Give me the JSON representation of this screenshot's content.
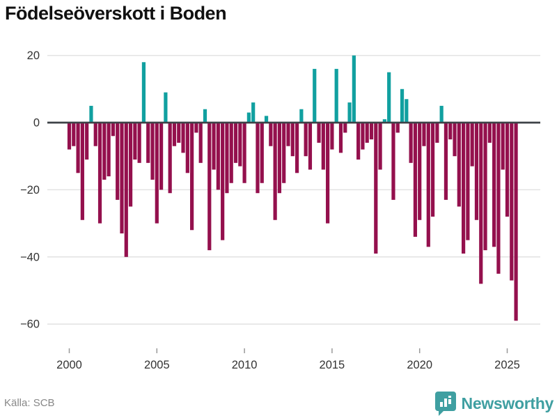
{
  "title": "Födelseöverskott i Boden",
  "source": "Källa: SCB",
  "branding": {
    "name": "Newsworthy"
  },
  "colors": {
    "positive": "#11a0a0",
    "negative": "#94104d",
    "zero_line": "#3d4247",
    "gridline": "#e2e2e2",
    "tick": "#999999",
    "axis_label": "#333333",
    "title": "#111111",
    "source_text": "#878787",
    "brand": "#3f9fa1"
  },
  "chart_data": {
    "type": "bar",
    "title": "Födelseöverskott i Boden",
    "period": "quarterly",
    "start": "2000-Q1",
    "end": "2025-Q3",
    "xlabel": "",
    "ylabel": "",
    "ylim": [
      -63,
      24
    ],
    "grid": true,
    "legend": "none",
    "y_ticks": [
      20,
      0,
      -20,
      -40,
      -60
    ],
    "y_tick_labels": [
      "20",
      "0",
      "−20",
      "−40",
      "−60"
    ],
    "x_tick_years": [
      2000,
      2005,
      2010,
      2015,
      2020,
      2025
    ],
    "x_tick_labels": [
      "2000",
      "2005",
      "2010",
      "2015",
      "2020",
      "2025"
    ],
    "series": [
      {
        "name": "Födelseöverskott",
        "values": [
          -8,
          -7,
          -15,
          -29,
          -11,
          5,
          -7,
          -30,
          -17,
          -16,
          -4,
          -23,
          -33,
          -40,
          -25,
          -11,
          -12,
          18,
          -12,
          -17,
          -30,
          -20,
          9,
          -21,
          -7,
          -6,
          -9,
          -15,
          -32,
          -3,
          -12,
          4,
          -38,
          -14,
          -20,
          -35,
          -21,
          -18,
          -12,
          -13,
          -18,
          3,
          6,
          -21,
          -18,
          2,
          -7,
          -29,
          -21,
          -18,
          -7,
          -10,
          -15,
          4,
          -10,
          -14,
          16,
          -6,
          -14,
          -30,
          -8,
          16,
          -9,
          -3,
          6,
          20,
          -11,
          -8,
          -6,
          -5,
          -39,
          -14,
          1,
          15,
          -23,
          -3,
          10,
          7,
          -12,
          -34,
          -29,
          -7,
          -37,
          -28,
          -6,
          5,
          -23,
          -5,
          -10,
          -25,
          -39,
          -35,
          -13,
          -29,
          -48,
          -38,
          -6,
          -37,
          -45,
          -14,
          -28,
          -47,
          -59
        ]
      }
    ]
  }
}
